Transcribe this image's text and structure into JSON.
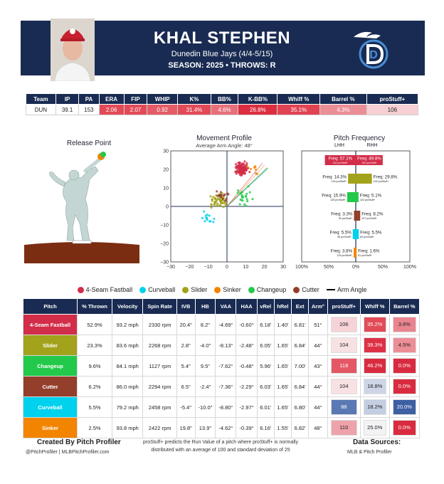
{
  "header": {
    "name": "KHAL STEPHEN",
    "team_line": "Dunedin Blue Jays (4/4-5/15)",
    "season_line": "SEASON: 2025 • THROWS: R",
    "logo_letter": "D"
  },
  "season_stats": {
    "headers": [
      "Team",
      "IP",
      "PA",
      "ERA",
      "FIP",
      "WHIP",
      "K%",
      "BB%",
      "K-BB%",
      "Whiff %",
      "Barrel %",
      "proStuff+"
    ],
    "values": [
      "DUN",
      "39.1",
      "153",
      "2.06",
      "2.07",
      "0.92",
      "31.4%",
      "4.6%",
      "26.8%",
      "35.1%",
      "4.3%",
      "106"
    ],
    "colors": [
      "#ffffff",
      "#ffffff",
      "#ffffff",
      "#e34a57",
      "#e34a57",
      "#e45c68",
      "#e34a57",
      "#e8707a",
      "#dc2e40",
      "#e04352",
      "#ec8e96",
      "#f6d0d3"
    ]
  },
  "release_point": {
    "title": "Release Point"
  },
  "movement": {
    "title": "Movement Profile",
    "subtitle": "Average Arm Angle: 48°",
    "x_ticks": [
      "−30",
      "−20",
      "−10",
      "0",
      "10",
      "20",
      "30"
    ],
    "y_ticks": [
      "30",
      "20",
      "10",
      "0",
      "−10",
      "−20",
      "−30"
    ]
  },
  "frequency": {
    "title": "Pitch Frequency",
    "lhh": "LHH",
    "rhh": "RHH",
    "x_ticks": [
      "100%",
      "50%",
      "0%",
      "50%",
      "100%"
    ]
  },
  "legend": [
    {
      "name": "4-Seam Fastball",
      "color": "#d22d49"
    },
    {
      "name": "Curveball",
      "color": "#00d1ed"
    },
    {
      "name": "Slider",
      "color": "#a3a21b"
    },
    {
      "name": "Sinker",
      "color": "#f28400"
    },
    {
      "name": "Changeup",
      "color": "#22c94a"
    },
    {
      "name": "Cutter",
      "color": "#933f2c"
    },
    {
      "name": "Arm Angle",
      "color": "#000000"
    }
  ],
  "pitch_table": {
    "headers": [
      "Pitch",
      "% Thrown",
      "Velocity",
      "Spin Rate",
      "IVB",
      "HB",
      "VAA",
      "HAA",
      "vRel",
      "hRel",
      "Ext",
      "Arm°",
      "proStuff+",
      "Whiff %",
      "Barrel %"
    ],
    "rows": [
      {
        "pitch": "4-Seam Fastball",
        "color": "#d22d49",
        "cells": [
          "52.9%",
          "93.2 mph",
          "2330 rpm",
          "20.4\"",
          "8.2\"",
          "-4.69°",
          "-0.60°",
          "6.18'",
          "1.40'",
          "6.81'",
          "51°"
        ],
        "stuff": "106",
        "stuff_bg": "#f6d3d6",
        "whiff": "35.2%",
        "whiff_bg": "#e34a57",
        "barrel": "3.8%",
        "barrel_bg": "#ea8590"
      },
      {
        "pitch": "Slider",
        "color": "#a3a21b",
        "cells": [
          "23.3%",
          "83.6 mph",
          "2268 rpm",
          "2.8\"",
          "-4.0\"",
          "-8.13°",
          "-2.48°",
          "6.05'",
          "1.65'",
          "6.84'",
          "44°"
        ],
        "stuff": "104",
        "stuff_bg": "#f8e1e3",
        "whiff": "39.3%",
        "whiff_bg": "#dd3245",
        "barrel": "4.5%",
        "barrel_bg": "#ec8e96"
      },
      {
        "pitch": "Changeup",
        "color": "#22c94a",
        "cells": [
          "9.6%",
          "84.1 mph",
          "1127 rpm",
          "5.4\"",
          "9.5\"",
          "-7.62°",
          "-0.48°",
          "5.96'",
          "1.65'",
          "7.00'",
          "43°"
        ],
        "stuff": "118",
        "stuff_bg": "#e45764",
        "whiff": "46.2%",
        "whiff_bg": "#d92b3f",
        "barrel": "0.0%",
        "barrel_bg": "#d92b3f"
      },
      {
        "pitch": "Cutter",
        "color": "#933f2c",
        "cells": [
          "6.2%",
          "86.0 mph",
          "2294 rpm",
          "6.5\"",
          "-2.4\"",
          "-7.36°",
          "-2.29°",
          "6.03'",
          "1.65'",
          "6.84'",
          "44°"
        ],
        "stuff": "104",
        "stuff_bg": "#f8e1e3",
        "whiff": "18.8%",
        "whiff_bg": "#cdd5e6",
        "barrel": "0.0%",
        "barrel_bg": "#d92b3f"
      },
      {
        "pitch": "Curveball",
        "color": "#00d1ed",
        "cells": [
          "5.5%",
          "79.2 mph",
          "2458 rpm",
          "-5.4\"",
          "-10.0\"",
          "-8.80°",
          "-2.97°",
          "6.01'",
          "1.65'",
          "6.80'",
          "44°"
        ],
        "stuff": "88",
        "stuff_bg": "#5a78b3",
        "whiff": "18.2%",
        "whiff_bg": "#c4cee2",
        "barrel": "20.0%",
        "barrel_bg": "#3d5fa3"
      },
      {
        "pitch": "Sinker",
        "color": "#f28400",
        "cells": [
          "2.5%",
          "93.8 mph",
          "2422 rpm",
          "19.8\"",
          "13.9\"",
          "-4.62°",
          "-0.39°",
          "6.16'",
          "1.55'",
          "6.82'",
          "48°"
        ],
        "stuff": "110",
        "stuff_bg": "#eea3aa",
        "whiff": "25.0%",
        "whiff_bg": "#f3f3f5",
        "barrel": "0.0%",
        "barrel_bg": "#d92b3f"
      }
    ]
  },
  "freq_data": [
    {
      "pitch": "4-Seam Fastball",
      "color": "#d22d49",
      "lhh": 57.1,
      "lhh_label": "Freq: 57.1%",
      "lhh_sub": "110 proStuff+",
      "rhh": 49.8,
      "rhh_label": "Freq: 49.8%",
      "rhh_sub": "102 proStuff+"
    },
    {
      "pitch": "Slider",
      "color": "#a3a21b",
      "lhh": 14.3,
      "lhh_label": "Freq: 14.3%",
      "lhh_sub": "115 proStuff+",
      "rhh": 29.8,
      "rhh_label": "Freq: 29.8%",
      "rhh_sub": "100 proStuff+"
    },
    {
      "pitch": "Changeup",
      "color": "#22c94a",
      "lhh": 15.9,
      "lhh_label": "Freq: 15.9%",
      "lhh_sub": "126 proStuff+",
      "rhh": 5.1,
      "rhh_label": "Freq: 5.1%",
      "rhh_sub": "102 proStuff+"
    },
    {
      "pitch": "Cutter",
      "color": "#933f2c",
      "lhh": 3.3,
      "lhh_label": "Freq: 3.3%",
      "lhh_sub": "90 proStuff+",
      "rhh": 8.2,
      "rhh_label": "Freq: 8.2%",
      "rhh_sub": "107 proStuff+"
    },
    {
      "pitch": "Curveball",
      "color": "#00d1ed",
      "lhh": 5.5,
      "lhh_label": "Freq: 5.5%",
      "lhh_sub": "95 proStuff+",
      "rhh": 5.5,
      "rhh_label": "Freq: 5.5%",
      "rhh_sub": "84 proStuff+"
    },
    {
      "pitch": "Sinker",
      "color": "#f28400",
      "lhh": 3.8,
      "lhh_label": "Freq: 3.8%",
      "lhh_sub": "125 proStuff+",
      "rhh": 1.6,
      "rhh_label": "Freq: 1.6%",
      "rhh_sub": "81 proStuff+"
    }
  ],
  "chart_data": [
    {
      "type": "scatter",
      "title": "Movement Profile",
      "subtitle": "Average Arm Angle: 48°",
      "xlim": [
        -30,
        30
      ],
      "ylim": [
        -30,
        30
      ],
      "grid": false,
      "series": [
        {
          "name": "4-Seam Fastball",
          "x_center": 8.2,
          "y_center": 20.4
        },
        {
          "name": "Slider",
          "x_center": -4.0,
          "y_center": 2.8
        },
        {
          "name": "Changeup",
          "x_center": 9.5,
          "y_center": 5.4
        },
        {
          "name": "Cutter",
          "x_center": -2.4,
          "y_center": 6.5
        },
        {
          "name": "Curveball",
          "x_center": -10.0,
          "y_center": -5.4
        },
        {
          "name": "Sinker",
          "x_center": 13.9,
          "y_center": 19.8
        }
      ]
    },
    {
      "type": "bar",
      "title": "Pitch Frequency",
      "categories": [
        "4-Seam Fastball",
        "Slider",
        "Changeup",
        "Cutter",
        "Curveball",
        "Sinker"
      ],
      "xlim": [
        -100,
        100
      ],
      "series": [
        {
          "name": "LHH",
          "values": [
            57.1,
            14.3,
            15.9,
            3.3,
            5.5,
            3.8
          ]
        },
        {
          "name": "RHH",
          "values": [
            49.8,
            29.8,
            5.1,
            8.2,
            5.5,
            1.6
          ]
        }
      ]
    }
  ],
  "footer": {
    "left_title": "Created By Pitch Profiler",
    "left_sub": "@PitchProfiler | MLBPitchProfiler.com",
    "mid_line1": "proStuff+ predicts the Run Value of a pitch where proStuff+ is normally",
    "mid_line2": "distributed with an average of 100 and standard deviation of 25",
    "right_title": "Data Sources:",
    "right_sub": "MLB & Pitch Profiler"
  }
}
